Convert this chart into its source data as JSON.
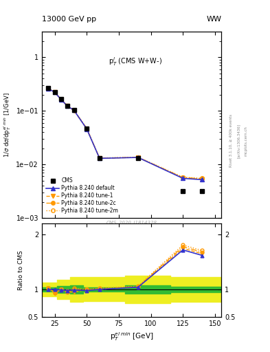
{
  "title_left": "13000 GeV pp",
  "title_right": "WW",
  "plot_label": "p$_T^l$ (CMS W+W-)",
  "cms_label": "CMS_2020_I1814328",
  "ylabel_main": "1/$\\sigma$ d$\\sigma$/dp$_T^{el min}$ [1/GeV]",
  "ylabel_ratio": "Ratio to CMS",
  "xlabel": "p$_T^{el\\ min}$ [GeV]",
  "xlim": [
    15,
    155
  ],
  "ylim_main": [
    0.001,
    3.0
  ],
  "ylim_ratio": [
    0.5,
    2.2
  ],
  "cms_x": [
    20,
    25,
    30,
    35,
    40,
    50,
    60,
    90,
    125,
    140
  ],
  "cms_y": [
    0.265,
    0.225,
    0.165,
    0.125,
    0.104,
    0.047,
    0.013,
    0.013,
    0.0032,
    0.0032
  ],
  "py_def_x": [
    20,
    25,
    30,
    35,
    40,
    50,
    60,
    90,
    125,
    140
  ],
  "py_def_y": [
    0.26,
    0.222,
    0.163,
    0.122,
    0.103,
    0.046,
    0.013,
    0.0135,
    0.0055,
    0.0052
  ],
  "py_t1_x": [
    20,
    25,
    30,
    35,
    40,
    50,
    60,
    90,
    125,
    140
  ],
  "py_t1_y": [
    0.262,
    0.222,
    0.163,
    0.122,
    0.102,
    0.046,
    0.013,
    0.0135,
    0.0056,
    0.0053
  ],
  "py_t2c_x": [
    20,
    25,
    30,
    35,
    40,
    50,
    60,
    90,
    125,
    140
  ],
  "py_t2c_y": [
    0.263,
    0.223,
    0.164,
    0.123,
    0.103,
    0.047,
    0.0131,
    0.0136,
    0.0057,
    0.0054
  ],
  "py_t2m_x": [
    20,
    25,
    30,
    35,
    40,
    50,
    60,
    90,
    125,
    140
  ],
  "py_t2m_y": [
    0.264,
    0.224,
    0.165,
    0.124,
    0.104,
    0.0472,
    0.0132,
    0.0137,
    0.0058,
    0.0055
  ],
  "ratio_x": [
    20,
    25,
    30,
    35,
    40,
    50,
    60,
    90,
    125,
    140
  ],
  "ratio_def": [
    1.0,
    1.0,
    0.99,
    0.98,
    0.99,
    0.98,
    1.0,
    1.04,
    1.72,
    1.62
  ],
  "ratio_t1": [
    1.03,
    0.93,
    1.0,
    0.95,
    0.95,
    1.0,
    1.0,
    1.04,
    1.75,
    1.65
  ],
  "ratio_t2c": [
    1.03,
    0.94,
    1.0,
    0.95,
    1.0,
    1.0,
    1.01,
    1.05,
    1.78,
    1.68
  ],
  "ratio_t2m": [
    1.03,
    0.94,
    1.0,
    0.97,
    1.02,
    1.0,
    1.02,
    1.06,
    1.81,
    1.71
  ],
  "yband_x": [
    15,
    27,
    27,
    37,
    37,
    47,
    47,
    80,
    80,
    115,
    115,
    155
  ],
  "yband_lo": [
    0.88,
    0.88,
    0.82,
    0.82,
    0.77,
    0.77,
    0.78,
    0.78,
    0.75,
    0.75,
    0.77,
    0.77
  ],
  "yband_hi": [
    1.12,
    1.12,
    1.18,
    1.18,
    1.23,
    1.23,
    1.22,
    1.22,
    1.25,
    1.25,
    1.23,
    1.23
  ],
  "gband_x": [
    15,
    27,
    27,
    37,
    37,
    47,
    47,
    80,
    80,
    115,
    115,
    155
  ],
  "gband_lo": [
    0.96,
    0.96,
    0.94,
    0.94,
    0.92,
    0.92,
    0.96,
    0.96,
    0.93,
    0.93,
    0.95,
    0.95
  ],
  "gband_hi": [
    1.04,
    1.04,
    1.06,
    1.06,
    1.08,
    1.08,
    1.04,
    1.04,
    1.07,
    1.07,
    1.05,
    1.05
  ],
  "color_cms": "#000000",
  "color_def": "#3333cc",
  "color_tune": "#ff9900",
  "color_green": "#33bb33",
  "color_yellow": "#eeee22"
}
